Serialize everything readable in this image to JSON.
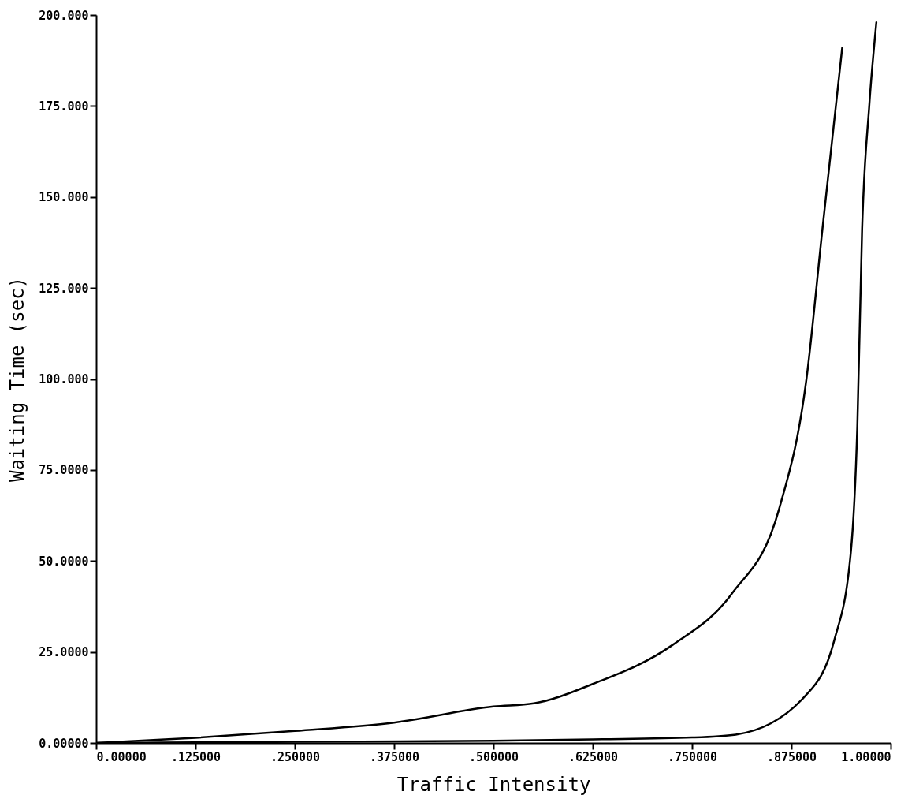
{
  "chart_data": {
    "type": "line",
    "xlabel": "Traffic Intensity",
    "ylabel": "Waiting Time (sec)",
    "xlim": [
      0,
      1
    ],
    "ylim": [
      0,
      200
    ],
    "xticks": [
      {
        "value": 0,
        "label": "0.00000"
      },
      {
        "value": 0.125,
        "label": ".125000"
      },
      {
        "value": 0.25,
        "label": ".250000"
      },
      {
        "value": 0.375,
        "label": ".375000"
      },
      {
        "value": 0.5,
        "label": ".500000"
      },
      {
        "value": 0.625,
        "label": ".625000"
      },
      {
        "value": 0.75,
        "label": ".750000"
      },
      {
        "value": 0.875,
        "label": ".875000"
      },
      {
        "value": 1,
        "label": "1.00000"
      }
    ],
    "yticks": [
      {
        "value": 0,
        "label": "0.00000"
      },
      {
        "value": 25,
        "label": "25.0000"
      },
      {
        "value": 50,
        "label": "50.0000"
      },
      {
        "value": 75,
        "label": "75.0000"
      },
      {
        "value": 100,
        "label": "100.000"
      },
      {
        "value": 125,
        "label": "125.000"
      },
      {
        "value": 150,
        "label": "150.000"
      },
      {
        "value": 175,
        "label": "175.000"
      },
      {
        "value": 200,
        "label": "200.000"
      }
    ],
    "grid": false,
    "series": [
      {
        "color": "#000000",
        "x": [
          0,
          0.125,
          0.25,
          0.375,
          0.5,
          0.551,
          0.625,
          0.726,
          0.8,
          0.86,
          0.894,
          0.914,
          0.939
        ],
        "values": [
          0,
          1.4,
          3.3,
          5.6,
          10,
          10.9,
          16.2,
          27,
          41,
          64.6,
          100,
          141,
          191
        ]
      },
      {
        "color": "#000000",
        "x": [
          0,
          0.25,
          0.5,
          0.625,
          0.75,
          0.805,
          0.892,
          0.929,
          0.95,
          0.958,
          0.964,
          0.973,
          0.982
        ],
        "values": [
          0,
          0.3,
          0.6,
          1,
          1.5,
          2.3,
          12.8,
          28.2,
          52.8,
          86.8,
          141,
          175,
          198
        ]
      }
    ]
  }
}
